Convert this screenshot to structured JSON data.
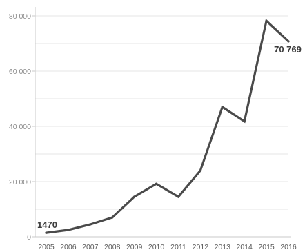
{
  "chart_data": {
    "type": "line",
    "title": "",
    "xlabel": "",
    "ylabel": "",
    "x": [
      "2005",
      "2006",
      "2007",
      "2008",
      "2009",
      "2010",
      "2011",
      "2012",
      "2013",
      "2014",
      "2015",
      "2016"
    ],
    "values": [
      1470,
      2500,
      4500,
      7000,
      14500,
      19200,
      14500,
      24000,
      47000,
      41800,
      78200,
      70769
    ],
    "ylim": [
      0,
      82000
    ],
    "y_ticks": [
      {
        "value": 0,
        "label": "0"
      },
      {
        "value": 20000,
        "label": "20 000"
      },
      {
        "value": 40000,
        "label": "40 000"
      },
      {
        "value": 60000,
        "label": "60 000"
      },
      {
        "value": 80000,
        "label": "80 000"
      }
    ],
    "minor_gridlines": [
      10000,
      30000,
      50000,
      70000
    ],
    "grid": true,
    "line_color": "#4a4a4a",
    "annotations": [
      {
        "year": "2005",
        "value": 1470,
        "label": "1470"
      },
      {
        "year": "2016",
        "value": 70769,
        "label": "70 769"
      }
    ]
  }
}
